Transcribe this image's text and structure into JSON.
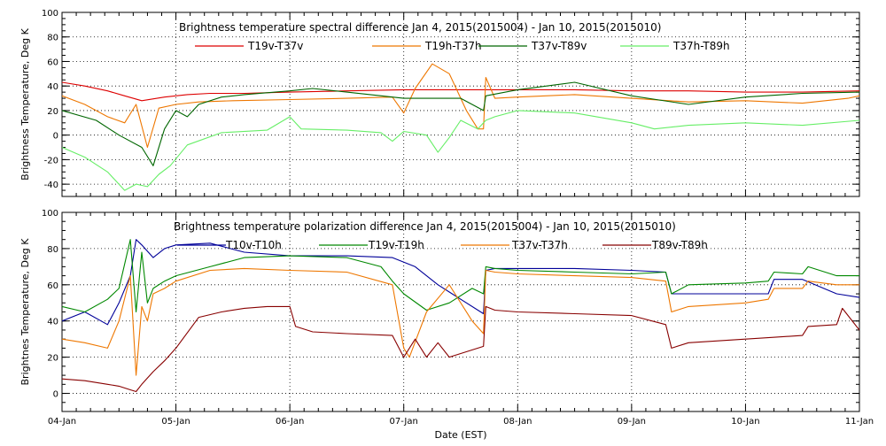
{
  "chart_data": [
    {
      "type": "line",
      "title": "Brightness temperature spectral difference    Jan  4, 2015(2015004) - Jan 10, 2015(2015010)",
      "xlabel": "",
      "ylabel": "Brightness Temperature, Deg K",
      "xlim": [
        0,
        7
      ],
      "ylim": [
        -50,
        100
      ],
      "yticks": [
        -40,
        -20,
        0,
        20,
        40,
        60,
        80,
        100
      ],
      "grid": true,
      "legend": "top",
      "series": [
        {
          "name": "T19v-T37v",
          "color": "#dd0000",
          "x": [
            0,
            0.2,
            0.4,
            0.55,
            0.7,
            0.9,
            1.1,
            1.3,
            1.6,
            2,
            2.5,
            3,
            3.5,
            4,
            4.5,
            5,
            5.5,
            6,
            6.5,
            7
          ],
          "y": [
            43,
            40,
            36,
            32,
            28,
            31,
            33,
            34,
            34,
            35,
            36,
            37,
            37,
            37,
            37,
            36,
            36,
            35,
            35,
            36
          ]
        },
        {
          "name": "T19h-T37h",
          "color": "#ee7700",
          "x": [
            0,
            0.2,
            0.4,
            0.55,
            0.65,
            0.75,
            0.85,
            1,
            1.2,
            1.5,
            2,
            2.5,
            2.9,
            3,
            3.1,
            3.25,
            3.4,
            3.55,
            3.65,
            3.7,
            3.72,
            3.8,
            4,
            4.5,
            5,
            5.5,
            6,
            6.5,
            6.9,
            7
          ],
          "y": [
            32,
            25,
            15,
            10,
            25,
            -10,
            22,
            25,
            27,
            28,
            29,
            30,
            31,
            18,
            38,
            58,
            50,
            20,
            5,
            5,
            47,
            30,
            31,
            33,
            30,
            27,
            28,
            26,
            30,
            32
          ]
        },
        {
          "name": "T37v-T89v",
          "color": "#006600",
          "x": [
            0,
            0.3,
            0.5,
            0.7,
            0.8,
            0.9,
            1,
            1.1,
            1.2,
            1.4,
            1.6,
            2,
            2.2,
            2.5,
            3,
            3.5,
            3.7,
            3.72,
            4,
            4.5,
            5,
            5.5,
            6,
            6.5,
            7
          ],
          "y": [
            20,
            12,
            0,
            -10,
            -25,
            5,
            20,
            15,
            25,
            31,
            33,
            36,
            38,
            35,
            30,
            30,
            20,
            32,
            37,
            43,
            32,
            25,
            31,
            34,
            35
          ]
        },
        {
          "name": "T37h-T89h",
          "color": "#66ee66",
          "x": [
            0,
            0.2,
            0.4,
            0.55,
            0.65,
            0.75,
            0.85,
            0.95,
            1.1,
            1.4,
            1.8,
            2,
            2.1,
            2.5,
            2.8,
            2.9,
            3,
            3.2,
            3.3,
            3.4,
            3.5,
            3.65,
            3.72,
            3.8,
            4,
            4.5,
            5,
            5.2,
            5.5,
            6,
            6.5,
            7
          ],
          "y": [
            -10,
            -18,
            -30,
            -45,
            -40,
            -42,
            -32,
            -25,
            -8,
            2,
            4,
            15,
            5,
            4,
            2,
            -5,
            3,
            0,
            -14,
            -2,
            12,
            5,
            12,
            15,
            20,
            18,
            10,
            5,
            8,
            10,
            8,
            12
          ]
        }
      ]
    },
    {
      "type": "line",
      "title": "Brightness temperature polarization difference    Jan  4, 2015(2015004) - Jan 10, 2015(2015010)",
      "xlabel": "Date (EST)",
      "ylabel": "Brightnes Temperature, Deg K",
      "xlim": [
        0,
        7
      ],
      "ylim": [
        -10,
        100
      ],
      "yticks": [
        0,
        20,
        40,
        60,
        80,
        100
      ],
      "xticklabels": [
        "04-Jan",
        "05-Jan",
        "06-Jan",
        "07-Jan",
        "08-Jan",
        "09-Jan",
        "10-Jan",
        "11-Jan"
      ],
      "grid": true,
      "legend": "top",
      "series": [
        {
          "name": "T10v-T10h",
          "color": "#000099",
          "x": [
            0,
            0.2,
            0.4,
            0.5,
            0.6,
            0.65,
            0.7,
            0.8,
            0.9,
            1,
            1.3,
            1.6,
            2,
            2.5,
            2.9,
            3.1,
            3.3,
            3.5,
            3.7,
            3.72,
            3.8,
            4,
            4.5,
            5,
            5.3,
            5.35,
            5.5,
            6,
            6.2,
            6.25,
            6.5,
            6.8,
            7
          ],
          "y": [
            40,
            45,
            38,
            50,
            65,
            85,
            82,
            75,
            80,
            82,
            83,
            78,
            76,
            76,
            75,
            70,
            60,
            52,
            44,
            68,
            69,
            69,
            69,
            68,
            67,
            55,
            55,
            55,
            55,
            63,
            63,
            55,
            53
          ]
        },
        {
          "name": "T19v-T19h",
          "color": "#008800",
          "x": [
            0,
            0.2,
            0.4,
            0.5,
            0.6,
            0.65,
            0.7,
            0.75,
            0.8,
            0.9,
            1,
            1.3,
            1.6,
            2,
            2.5,
            2.8,
            2.9,
            3,
            3.2,
            3.4,
            3.6,
            3.7,
            3.72,
            3.8,
            4,
            4.5,
            5,
            5.3,
            5.35,
            5.5,
            6,
            6.2,
            6.25,
            6.5,
            6.55,
            6.8,
            7
          ],
          "y": [
            48,
            45,
            52,
            58,
            85,
            45,
            78,
            50,
            58,
            62,
            65,
            70,
            75,
            76,
            75,
            70,
            62,
            55,
            46,
            50,
            58,
            55,
            70,
            69,
            68,
            67,
            66,
            67,
            55,
            60,
            61,
            62,
            67,
            66,
            70,
            65,
            65
          ]
        },
        {
          "name": "T37v-T37h",
          "color": "#ee7700",
          "x": [
            0,
            0.2,
            0.4,
            0.5,
            0.6,
            0.65,
            0.7,
            0.75,
            0.8,
            0.9,
            1,
            1.3,
            1.6,
            2,
            2.5,
            2.9,
            3,
            3.05,
            3.2,
            3.4,
            3.6,
            3.7,
            3.72,
            3.8,
            4,
            4.5,
            5,
            5.3,
            5.35,
            5.5,
            6,
            6.2,
            6.25,
            6.5,
            6.55,
            6.8,
            7
          ],
          "y": [
            30,
            28,
            25,
            40,
            65,
            10,
            48,
            40,
            55,
            58,
            62,
            68,
            69,
            68,
            67,
            60,
            25,
            20,
            45,
            60,
            40,
            33,
            68,
            67,
            66,
            65,
            64,
            62,
            45,
            48,
            50,
            52,
            58,
            58,
            62,
            60,
            60
          ]
        },
        {
          "name": "T89v-T89h",
          "color": "#880000",
          "x": [
            0,
            0.2,
            0.4,
            0.5,
            0.6,
            0.65,
            0.7,
            0.8,
            0.9,
            1,
            1.2,
            1.4,
            1.6,
            1.8,
            2,
            2.05,
            2.2,
            2.5,
            2.9,
            3,
            3.1,
            3.2,
            3.3,
            3.4,
            3.5,
            3.7,
            3.72,
            3.8,
            4,
            4.5,
            5,
            5.3,
            5.35,
            5.5,
            6,
            6.5,
            6.55,
            6.8,
            6.85,
            7
          ],
          "y": [
            8,
            7,
            5,
            4,
            2,
            1,
            5,
            12,
            18,
            25,
            42,
            45,
            47,
            48,
            48,
            37,
            34,
            33,
            32,
            20,
            30,
            20,
            28,
            20,
            22,
            26,
            48,
            46,
            45,
            44,
            43,
            38,
            25,
            28,
            30,
            32,
            37,
            38,
            47,
            35
          ]
        }
      ]
    }
  ]
}
